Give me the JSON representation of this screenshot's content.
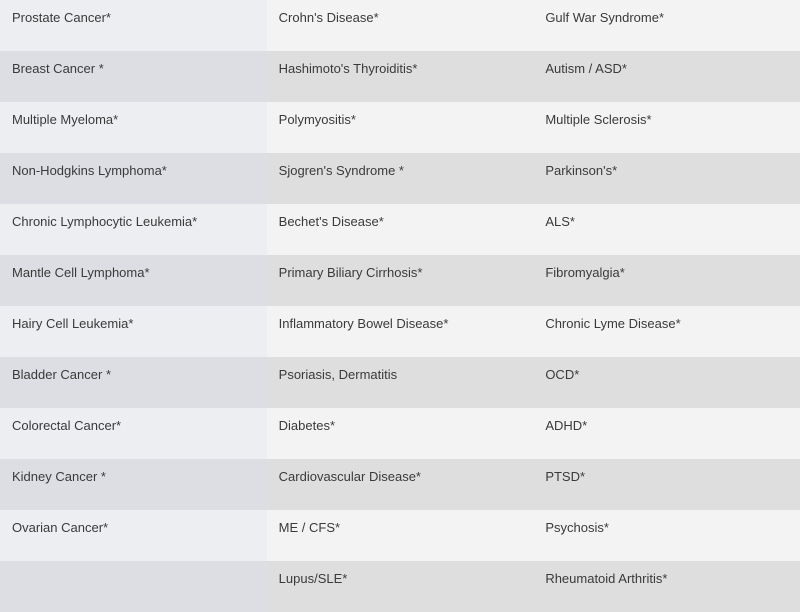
{
  "table": {
    "columns": 3,
    "row_colors": {
      "light": "#f3f3f3",
      "dark": "#dededf",
      "col0_light": "#edeef1",
      "col0_dark": "#dcdee3"
    },
    "text_color": "#3a3a3a",
    "font_size": 13,
    "rows": [
      [
        "Prostate Cancer*",
        "Crohn's Disease*",
        "Gulf War Syndrome*"
      ],
      [
        "Breast Cancer *",
        "Hashimoto's Thyroiditis*",
        "Autism / ASD*"
      ],
      [
        "Multiple Myeloma*",
        "Polymyositis*",
        "Multiple Sclerosis*"
      ],
      [
        "Non-Hodgkins Lymphoma*",
        "Sjogren's Syndrome *",
        "Parkinson's*"
      ],
      [
        "Chronic Lymphocytic Leukemia*",
        "Bechet's Disease*",
        "ALS*"
      ],
      [
        "Mantle Cell Lymphoma*",
        "Primary Biliary Cirrhosis*",
        "Fibromyalgia*"
      ],
      [
        "Hairy Cell Leukemia*",
        "Inflammatory Bowel Disease*",
        "Chronic Lyme Disease*"
      ],
      [
        "Bladder Cancer *",
        "Psoriasis, Dermatitis",
        "OCD*"
      ],
      [
        "Colorectal Cancer*",
        "Diabetes*",
        "ADHD*"
      ],
      [
        "Kidney Cancer *",
        "Cardiovascular Disease*",
        "PTSD*"
      ],
      [
        "Ovarian Cancer*",
        "ME / CFS*",
        "Psychosis*"
      ],
      [
        "",
        "Lupus/SLE*",
        "Rheumatoid Arthritis*"
      ]
    ]
  }
}
